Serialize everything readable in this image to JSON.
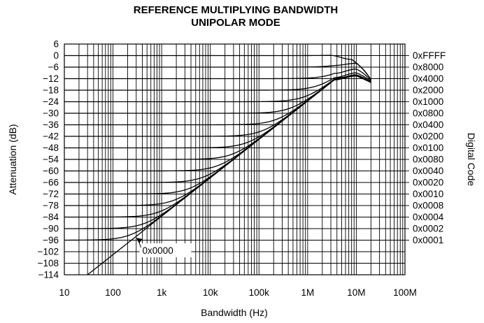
{
  "chart_data": {
    "type": "line",
    "title": "REFERENCE MULTIPLYING BANDWIDTH",
    "subtitle": "UNIPOLAR MODE",
    "xlabel": "Bandwidth (Hz)",
    "ylabel": "Attenuation (dB)",
    "y2label": "Digital Code",
    "xscale": "log",
    "xlim": [
      10,
      100000000
    ],
    "ylim": [
      -114,
      6
    ],
    "grid": true,
    "x_ticks": [
      {
        "value": 10,
        "label": "10"
      },
      {
        "value": 100,
        "label": "100"
      },
      {
        "value": 1000,
        "label": "1k"
      },
      {
        "value": 10000,
        "label": "10k"
      },
      {
        "value": 100000,
        "label": "100k"
      },
      {
        "value": 1000000,
        "label": "1M"
      },
      {
        "value": 10000000,
        "label": "10M"
      },
      {
        "value": 100000000,
        "label": "100M"
      }
    ],
    "y_ticks": [
      {
        "value": 6,
        "label": "6"
      },
      {
        "value": 0,
        "label": "0"
      },
      {
        "value": -6,
        "label": "−6"
      },
      {
        "value": -12,
        "label": "−12"
      },
      {
        "value": -18,
        "label": "−18"
      },
      {
        "value": -24,
        "label": "−24"
      },
      {
        "value": -30,
        "label": "−30"
      },
      {
        "value": -36,
        "label": "−36"
      },
      {
        "value": -42,
        "label": "−42"
      },
      {
        "value": -48,
        "label": "−48"
      },
      {
        "value": -54,
        "label": "−54"
      },
      {
        "value": -60,
        "label": "−60"
      },
      {
        "value": -66,
        "label": "−66"
      },
      {
        "value": -72,
        "label": "−72"
      },
      {
        "value": -78,
        "label": "−78"
      },
      {
        "value": -84,
        "label": "−84"
      },
      {
        "value": -90,
        "label": "−90"
      },
      {
        "value": -96,
        "label": "−96"
      },
      {
        "value": -102,
        "label": "−102"
      },
      {
        "value": -108,
        "label": "−108"
      },
      {
        "value": -114,
        "label": "−114"
      }
    ],
    "series": [
      {
        "name": "0xFFFF",
        "label_y": 0,
        "flat_db": 0,
        "peak_freq": 8000000,
        "peak_db": -2,
        "end_db": -12.5
      },
      {
        "name": "0x8000",
        "label_y": -6,
        "flat_db": -6,
        "peak_freq": 10000000,
        "peak_db": -4,
        "end_db": -12.5
      },
      {
        "name": "0x4000",
        "label_y": -12,
        "flat_db": -12,
        "peak_freq": 10000000,
        "peak_db": -7,
        "end_db": -13
      },
      {
        "name": "0x2000",
        "label_y": -18,
        "flat_db": -18,
        "peak_freq": 10000000,
        "peak_db": -9,
        "end_db": -13.5
      },
      {
        "name": "0x1000",
        "label_y": -24,
        "flat_db": -24,
        "peak_freq": 10000000,
        "peak_db": -10,
        "end_db": -14
      },
      {
        "name": "0x0800",
        "label_y": -30,
        "flat_db": -30,
        "peak_freq": 10000000,
        "peak_db": -10.5,
        "end_db": -14
      },
      {
        "name": "0x0400",
        "label_y": -36,
        "flat_db": -36,
        "peak_freq": 10000000,
        "peak_db": -10.5,
        "end_db": -14
      },
      {
        "name": "0x0200",
        "label_y": -42,
        "flat_db": -42,
        "peak_freq": 10000000,
        "peak_db": -10.5,
        "end_db": -14
      },
      {
        "name": "0x0100",
        "label_y": -48,
        "flat_db": -48,
        "peak_freq": 10000000,
        "peak_db": -10.5,
        "end_db": -14
      },
      {
        "name": "0x0080",
        "label_y": -54,
        "flat_db": -54,
        "peak_freq": 10000000,
        "peak_db": -10.5,
        "end_db": -14
      },
      {
        "name": "0x0040",
        "label_y": -60,
        "flat_db": -60,
        "peak_freq": 10000000,
        "peak_db": -10.5,
        "end_db": -14
      },
      {
        "name": "0x0020",
        "label_y": -66,
        "flat_db": -66,
        "peak_freq": 10000000,
        "peak_db": -10.5,
        "end_db": -14
      },
      {
        "name": "0x0010",
        "label_y": -72,
        "flat_db": -72,
        "peak_freq": 10000000,
        "peak_db": -10.5,
        "end_db": -14
      },
      {
        "name": "0x0008",
        "label_y": -78,
        "flat_db": -78,
        "peak_freq": 10000000,
        "peak_db": -10.5,
        "end_db": -14
      },
      {
        "name": "0x0004",
        "label_y": -84,
        "flat_db": -84,
        "peak_freq": 10000000,
        "peak_db": -10.5,
        "end_db": -14
      },
      {
        "name": "0x0002",
        "label_y": -90,
        "flat_db": -90,
        "peak_freq": 10000000,
        "peak_db": -10.5,
        "end_db": -14
      },
      {
        "name": "0x0001",
        "label_y": -96,
        "flat_db": -96,
        "peak_freq": 10000000,
        "peak_db": -10.5,
        "end_db": -14
      }
    ],
    "feedthrough": {
      "name": "0x0000",
      "x_start": 30,
      "y_start": -114,
      "slope_db_per_decade": 20,
      "peak_freq": 10000000,
      "peak_db": -10.5,
      "end_freq": 20000000,
      "end_db": -14,
      "label_at_x": 400,
      "label_at_y": -102
    },
    "x_end": 20000000
  }
}
